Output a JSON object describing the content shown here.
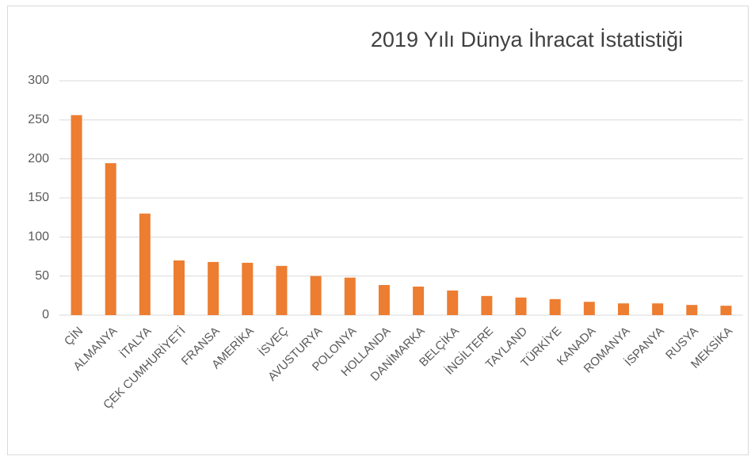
{
  "chart_data": {
    "type": "bar",
    "title": "2019 Yılı Dünya İhracat İstatistiği",
    "categories": [
      "ÇİN",
      "ALMANYA",
      "İTALYA",
      "ÇEK CUMHURİYETİ",
      "FRANSA",
      "AMERİKA",
      "İSVEÇ",
      "AVUSTURYA",
      "POLONYA",
      "HOLLANDA",
      "DANİMARKA",
      "BELÇİKA",
      "İNGİLTERE",
      "TAYLAND",
      "TÜRKİYE",
      "KANADA",
      "ROMANYA",
      "İSPANYA",
      "RUSYA",
      "MEKSİKA"
    ],
    "values": [
      256,
      194.5,
      130,
      70,
      68,
      67,
      63,
      50,
      48,
      38.5,
      36.5,
      31.5,
      24.5,
      22.5,
      20.5,
      17,
      15,
      15,
      13,
      12
    ],
    "color": "#ed7d31",
    "ylim": [
      0,
      300
    ],
    "yticks": [
      0,
      50,
      100,
      150,
      200,
      250,
      300
    ],
    "grid": true
  }
}
